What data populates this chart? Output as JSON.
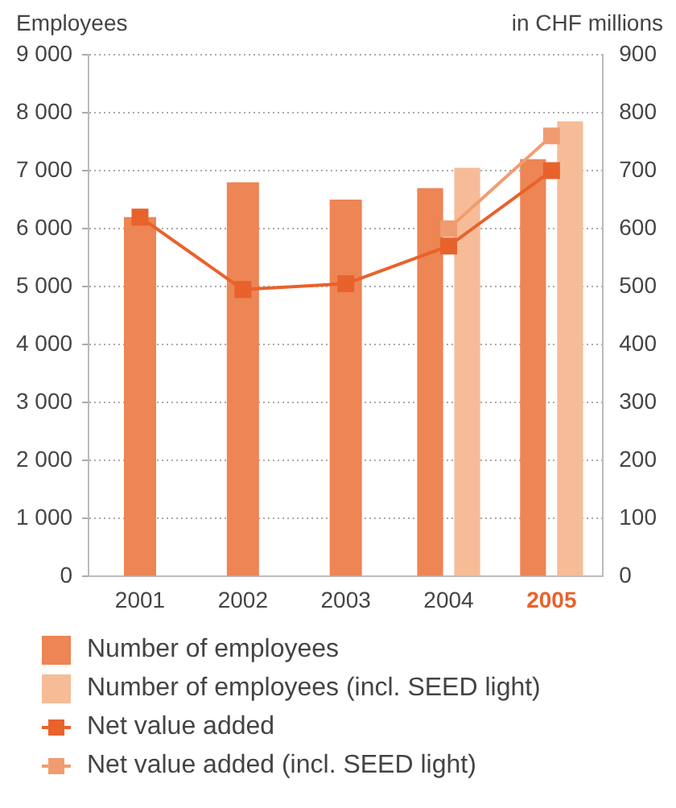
{
  "chart_data": {
    "type": "bar",
    "ylabel": "Employees",
    "y2label": "in CHF millions",
    "categories": [
      "2001",
      "2002",
      "2003",
      "2004",
      "2005"
    ],
    "series": [
      {
        "name": "Number of employees",
        "color": "#ed8554",
        "values": [
          6200,
          6800,
          6500,
          6700,
          7200
        ]
      },
      {
        "name": "Number of employees (incl. SEED light)",
        "color": "#f6bc98",
        "values": [
          null,
          null,
          null,
          7050,
          7850
        ]
      },
      {
        "name": "Net value added",
        "type": "line",
        "axis": "y2",
        "color": "#e8622c",
        "values": [
          620,
          495,
          505,
          570,
          700
        ]
      },
      {
        "name": "Net value added (incl. SEED light)",
        "type": "line",
        "axis": "y2",
        "color": "#f19c70",
        "values": [
          null,
          null,
          null,
          600,
          760
        ]
      }
    ],
    "ylim": [
      0,
      9000
    ],
    "yticks": [
      0,
      {
        "value": 1000,
        "label": "1 000"
      },
      {
        "value": 2000,
        "label": "2 000"
      },
      {
        "value": 3000,
        "label": "3 000"
      },
      {
        "value": 4000,
        "label": "4 000"
      },
      {
        "value": 5000,
        "label": "5 000"
      },
      {
        "value": 6000,
        "label": "6 000"
      },
      {
        "value": 7000,
        "label": "7 000"
      },
      {
        "value": 8000,
        "label": "8 000"
      },
      {
        "value": 9000,
        "label": "9 000"
      }
    ],
    "y2lim": [
      0,
      900
    ],
    "y2ticks": [
      0,
      100,
      200,
      300,
      400,
      500,
      600,
      700,
      800,
      900
    ],
    "grid": "y",
    "legend": "bottom",
    "marker": "square",
    "line_style": "solid"
  }
}
